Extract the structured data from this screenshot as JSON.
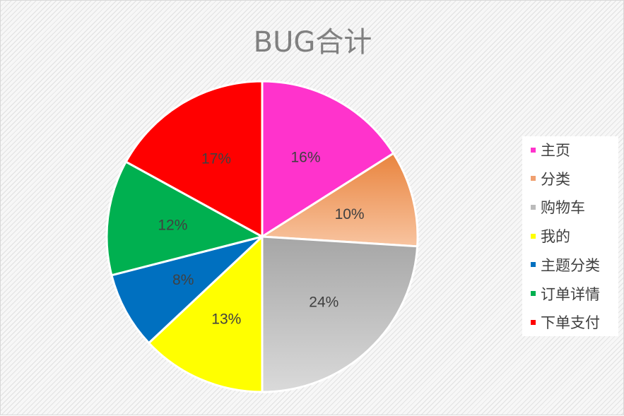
{
  "chart_data": {
    "type": "pie",
    "title": "BUG合计",
    "categories": [
      "主页",
      "分类",
      "购物车",
      "我的",
      "主题分类",
      "订单详情",
      "下单支付"
    ],
    "values": [
      16,
      10,
      24,
      13,
      8,
      12,
      17
    ],
    "labels": [
      "16%",
      "10%",
      "24%",
      "13%",
      "8%",
      "12%",
      "17%"
    ],
    "colors": [
      "#ff33cc",
      "#f0a070",
      "#bbbbbb",
      "#ffff00",
      "#0070c0",
      "#00b050",
      "#ff0000"
    ],
    "legend_position": "right",
    "start_angle_deg": 0,
    "direction": "clockwise"
  }
}
